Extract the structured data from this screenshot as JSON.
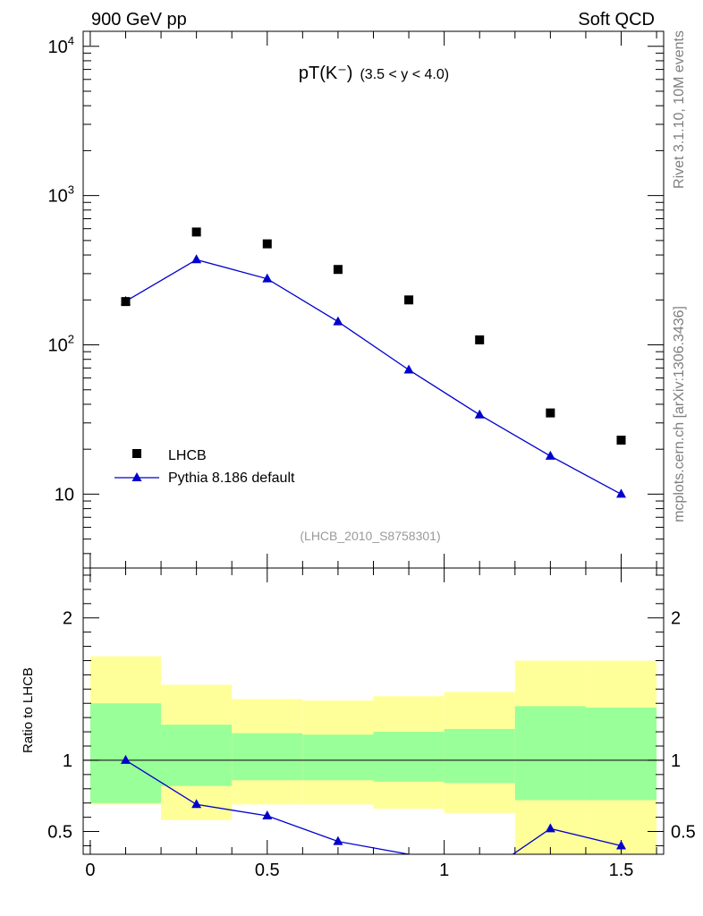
{
  "header": {
    "left": "900 GeV pp",
    "right": "Soft QCD"
  },
  "side_labels": {
    "rivet": "Rivet 3.1.10,  10M events",
    "mcplots": "mcplots.cern.ch [arXiv:1306.3436]"
  },
  "chart_data": [
    {
      "type": "scatter",
      "title_main": "pT(K⁻)",
      "title_sub": "(3.5 < y < 4.0)",
      "watermark": "(LHCB_2010_S8758301)",
      "yscale": "log",
      "xlim": [
        -0.02,
        1.62
      ],
      "ylim": [
        3.2,
        12600
      ],
      "x_ticks": [
        0,
        0.5,
        1,
        1.5
      ],
      "y_tick_labels": [
        {
          "value": 10,
          "base": "10",
          "exp": ""
        },
        {
          "value": 100,
          "base": "10",
          "exp": "2"
        },
        {
          "value": 1000,
          "base": "10",
          "exp": "3"
        },
        {
          "value": 10000,
          "base": "10",
          "exp": "4"
        }
      ],
      "legend_position": "bottom-left",
      "series": [
        {
          "name": "LHCB",
          "marker": "square",
          "color": "#000000",
          "x": [
            0.1,
            0.3,
            0.5,
            0.7,
            0.9,
            1.1,
            1.3,
            1.5
          ],
          "y": [
            195,
            570,
            475,
            320,
            200,
            108,
            35,
            23
          ]
        },
        {
          "name": "Pythia 8.186 default",
          "marker": "triangle",
          "color": "#0000cc",
          "x": [
            0.1,
            0.3,
            0.5,
            0.7,
            0.9,
            1.1,
            1.3,
            1.5
          ],
          "y": [
            196,
            372,
            277,
            143,
            68,
            34,
            18,
            10
          ]
        }
      ]
    },
    {
      "type": "line",
      "ylabel": "Ratio to LHCB",
      "xlim": [
        -0.02,
        1.62
      ],
      "ylim": [
        0.34,
        2.35
      ],
      "x_ticks": [
        0,
        0.5,
        1,
        1.5
      ],
      "x_tick_labels": [
        "0",
        "0.5",
        "1",
        "1.5"
      ],
      "y_ticks": [
        0.5,
        1,
        2
      ],
      "y_tick_labels": [
        "0.5",
        "1",
        "2"
      ],
      "band_colors": {
        "outer": "#ffff99",
        "inner": "#99ff99"
      },
      "bands": [
        {
          "x0": 0.0,
          "x1": 0.2,
          "outer": [
            0.69,
            1.73
          ],
          "inner": [
            0.7,
            1.4
          ]
        },
        {
          "x0": 0.2,
          "x1": 0.4,
          "outer": [
            0.58,
            1.53
          ],
          "inner": [
            0.82,
            1.25
          ]
        },
        {
          "x0": 0.4,
          "x1": 0.6,
          "outer": [
            0.69,
            1.43
          ],
          "inner": [
            0.86,
            1.19
          ]
        },
        {
          "x0": 0.6,
          "x1": 0.8,
          "outer": [
            0.69,
            1.42
          ],
          "inner": [
            0.86,
            1.18
          ]
        },
        {
          "x0": 0.8,
          "x1": 1.0,
          "outer": [
            0.66,
            1.45
          ],
          "inner": [
            0.85,
            1.2
          ]
        },
        {
          "x0": 1.0,
          "x1": 1.2,
          "outer": [
            0.63,
            1.48
          ],
          "inner": [
            0.84,
            1.22
          ]
        },
        {
          "x0": 1.2,
          "x1": 1.4,
          "outer": [
            0.34,
            1.7
          ],
          "inner": [
            0.72,
            1.38
          ]
        },
        {
          "x0": 1.4,
          "x1": 1.6,
          "outer": [
            0.34,
            1.7
          ],
          "inner": [
            0.72,
            1.37
          ]
        }
      ],
      "series": [
        {
          "name": "Pythia 8.186 default",
          "color": "#0000cc",
          "x": [
            0.1,
            0.3,
            0.5,
            0.7,
            0.9,
            1.3,
            1.5
          ],
          "y": [
            1.0,
            0.69,
            0.61,
            0.43,
            0.34,
            0.52,
            0.4
          ]
        }
      ]
    }
  ]
}
